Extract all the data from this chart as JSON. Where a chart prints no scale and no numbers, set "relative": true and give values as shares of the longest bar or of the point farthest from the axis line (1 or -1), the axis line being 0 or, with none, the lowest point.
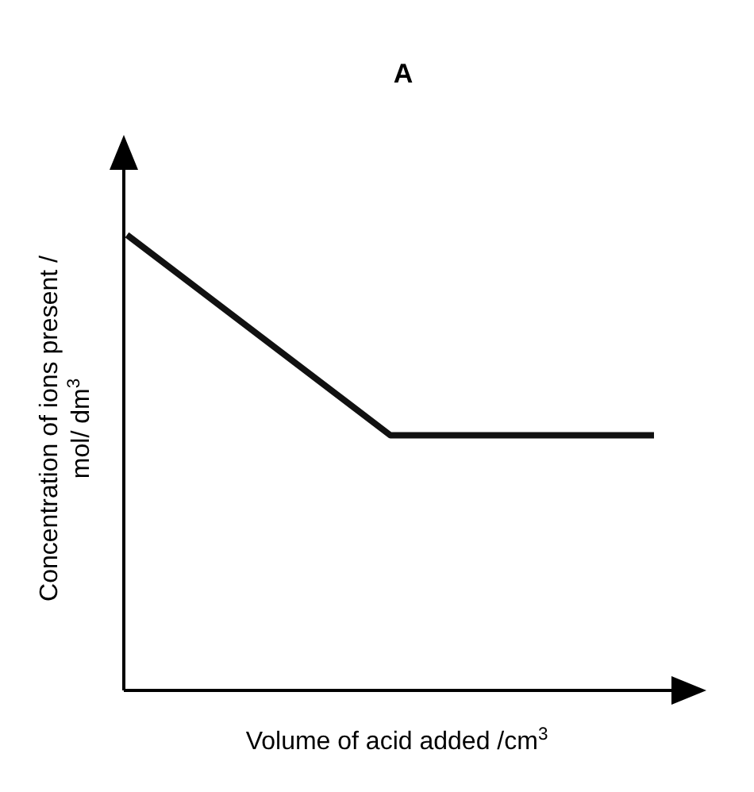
{
  "chart_data": {
    "type": "line",
    "title": "A",
    "xlabel": "Volume of acid added /cm$^{3}$",
    "ylabel": "Concentration of ions present / mol/ dm$^{3}$",
    "relative": true,
    "categories": [
      null,
      null,
      null
    ],
    "series": [
      {
        "color": "#111111",
        "values": [
          1,
          0.56,
          0.56
        ]
      }
    ]
  }
}
